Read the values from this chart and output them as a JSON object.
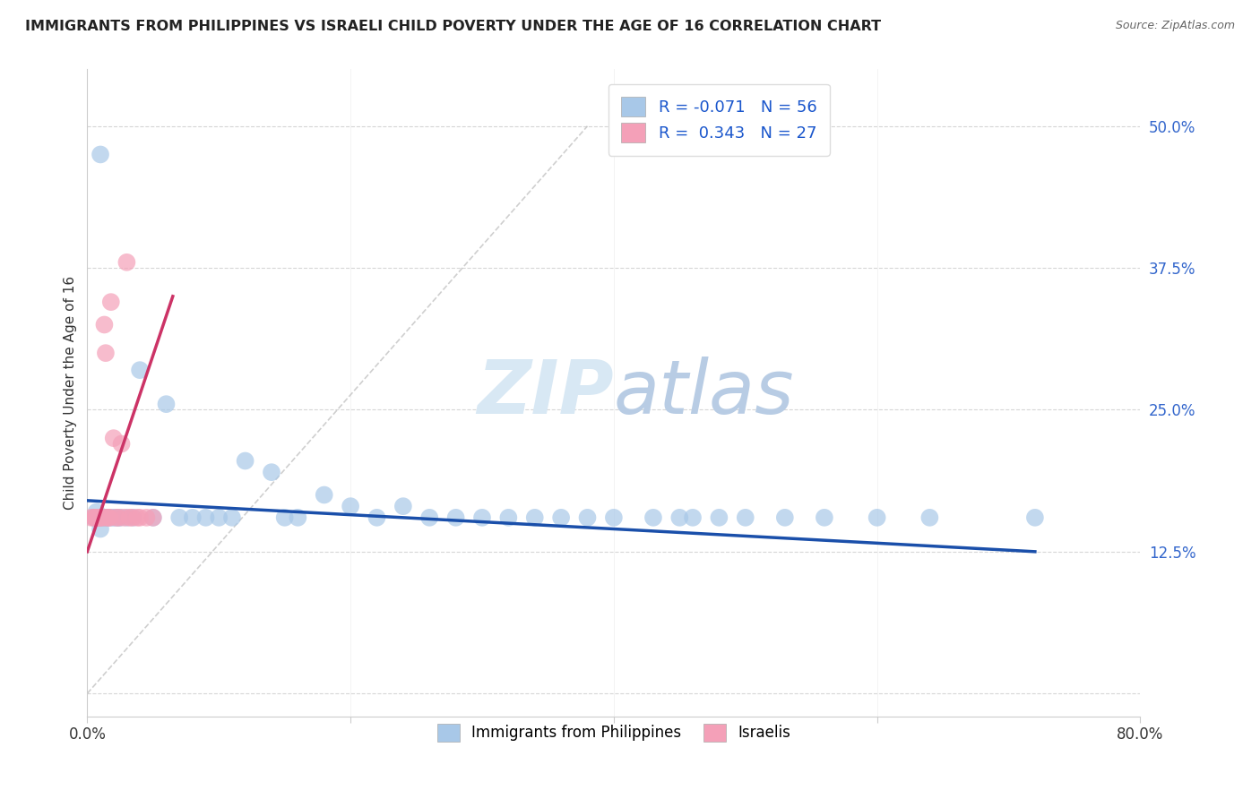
{
  "title": "IMMIGRANTS FROM PHILIPPINES VS ISRAELI CHILD POVERTY UNDER THE AGE OF 16 CORRELATION CHART",
  "source": "Source: ZipAtlas.com",
  "ylabel": "Child Poverty Under the Age of 16",
  "xlim": [
    0.0,
    0.8
  ],
  "ylim": [
    -0.02,
    0.55
  ],
  "yticks": [
    0.0,
    0.125,
    0.25,
    0.375,
    0.5
  ],
  "ytick_labels": [
    "",
    "12.5%",
    "25.0%",
    "37.5%",
    "50.0%"
  ],
  "xticks": [
    0.0,
    0.2,
    0.4,
    0.6,
    0.8
  ],
  "xtick_labels": [
    "0.0%",
    "",
    "",
    "",
    "80.0%"
  ],
  "blue_R": -0.071,
  "blue_N": 56,
  "pink_R": 0.343,
  "pink_N": 27,
  "blue_color": "#a8c8e8",
  "pink_color": "#f4a0b8",
  "blue_line_color": "#1a4faa",
  "pink_line_color": "#cc3366",
  "watermark_color": "#d8e8f4",
  "blue_scatter_x": [
    0.005,
    0.006,
    0.007,
    0.007,
    0.008,
    0.008,
    0.009,
    0.01,
    0.01,
    0.01,
    0.012,
    0.012,
    0.014,
    0.015,
    0.016,
    0.018,
    0.02,
    0.022,
    0.024,
    0.025,
    0.03,
    0.035,
    0.04,
    0.05,
    0.06,
    0.07,
    0.08,
    0.09,
    0.1,
    0.11,
    0.12,
    0.14,
    0.15,
    0.16,
    0.18,
    0.2,
    0.22,
    0.24,
    0.26,
    0.28,
    0.3,
    0.32,
    0.34,
    0.36,
    0.38,
    0.4,
    0.43,
    0.45,
    0.46,
    0.48,
    0.5,
    0.53,
    0.56,
    0.6,
    0.64,
    0.72
  ],
  "blue_scatter_y": [
    0.155,
    0.155,
    0.155,
    0.16,
    0.155,
    0.155,
    0.155,
    0.155,
    0.145,
    0.475,
    0.155,
    0.155,
    0.155,
    0.155,
    0.155,
    0.155,
    0.155,
    0.155,
    0.155,
    0.155,
    0.155,
    0.155,
    0.285,
    0.155,
    0.255,
    0.155,
    0.155,
    0.155,
    0.155,
    0.155,
    0.205,
    0.195,
    0.155,
    0.155,
    0.175,
    0.165,
    0.155,
    0.165,
    0.155,
    0.155,
    0.155,
    0.155,
    0.155,
    0.155,
    0.155,
    0.155,
    0.155,
    0.155,
    0.155,
    0.155,
    0.155,
    0.155,
    0.155,
    0.155,
    0.155,
    0.155
  ],
  "pink_scatter_x": [
    0.003,
    0.005,
    0.006,
    0.007,
    0.008,
    0.009,
    0.01,
    0.01,
    0.012,
    0.013,
    0.014,
    0.015,
    0.016,
    0.017,
    0.018,
    0.02,
    0.022,
    0.024,
    0.026,
    0.028,
    0.03,
    0.032,
    0.034,
    0.038,
    0.04,
    0.045,
    0.05
  ],
  "pink_scatter_y": [
    0.155,
    0.155,
    0.155,
    0.155,
    0.155,
    0.155,
    0.155,
    0.155,
    0.155,
    0.325,
    0.3,
    0.155,
    0.155,
    0.155,
    0.345,
    0.225,
    0.155,
    0.155,
    0.22,
    0.155,
    0.38,
    0.155,
    0.155,
    0.155,
    0.155,
    0.155,
    0.155
  ],
  "blue_line_x": [
    0.0,
    0.72
  ],
  "blue_line_y_start": 0.17,
  "blue_line_y_end": 0.125,
  "pink_line_x": [
    0.0,
    0.065
  ],
  "pink_line_y_start": 0.125,
  "pink_line_y_end": 0.35,
  "diag_line_x": [
    0.0,
    0.38
  ],
  "diag_line_y": [
    0.0,
    0.5
  ]
}
